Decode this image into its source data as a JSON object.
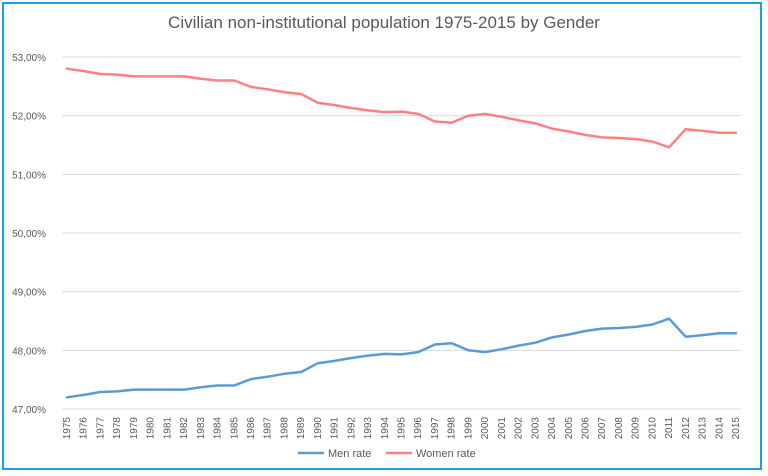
{
  "chart_data": {
    "type": "line",
    "title": "Civilian non-institutional population 1975-2015 by Gender",
    "xlabel": "",
    "ylabel": "",
    "ylim": [
      0.47,
      0.53
    ],
    "ytick_values": [
      0.47,
      0.48,
      0.49,
      0.5,
      0.51,
      0.52,
      0.53
    ],
    "ytick_labels": [
      "47,00%",
      "48,00%",
      "49,00%",
      "50,00%",
      "51,00%",
      "52,00%",
      "53,00%"
    ],
    "grid": "horizontal",
    "legend_position": "bottom",
    "x": [
      "1975",
      "1976",
      "1977",
      "1978",
      "1979",
      "1980",
      "1981",
      "1982",
      "1983",
      "1984",
      "1985",
      "1986",
      "1987",
      "1988",
      "1989",
      "1990",
      "1991",
      "1992",
      "1993",
      "1994",
      "1995",
      "1996",
      "1997",
      "1998",
      "1999",
      "2000",
      "2001",
      "2002",
      "2003",
      "2004",
      "2005",
      "2006",
      "2007",
      "2008",
      "2009",
      "2010",
      "2011",
      "2012",
      "2013",
      "2014",
      "2015"
    ],
    "series": [
      {
        "name": "Men rate",
        "color": "#5b9bd5",
        "values": [
          0.472,
          0.4724,
          0.4729,
          0.473,
          0.4733,
          0.4733,
          0.4733,
          0.4733,
          0.4737,
          0.474,
          0.474,
          0.4751,
          0.4755,
          0.476,
          0.4763,
          0.4778,
          0.4782,
          0.4787,
          0.4791,
          0.4794,
          0.4793,
          0.4797,
          0.481,
          0.4812,
          0.48,
          0.4797,
          0.4802,
          0.4808,
          0.4813,
          0.4822,
          0.4827,
          0.4833,
          0.4837,
          0.4838,
          0.484,
          0.4844,
          0.4854,
          0.4823,
          0.4826,
          0.4829,
          0.4829
        ]
      },
      {
        "name": "Women rate",
        "color": "#ff8080",
        "values": [
          0.528,
          0.5276,
          0.5271,
          0.527,
          0.5267,
          0.5267,
          0.5267,
          0.5267,
          0.5263,
          0.526,
          0.526,
          0.5249,
          0.5245,
          0.524,
          0.5237,
          0.5222,
          0.5218,
          0.5213,
          0.5209,
          0.5206,
          0.5207,
          0.5203,
          0.519,
          0.5188,
          0.52,
          0.5203,
          0.5198,
          0.5192,
          0.5187,
          0.5178,
          0.5173,
          0.5167,
          0.5163,
          0.5162,
          0.516,
          0.5156,
          0.5146,
          0.5177,
          0.5174,
          0.5171,
          0.5171
        ]
      }
    ]
  }
}
